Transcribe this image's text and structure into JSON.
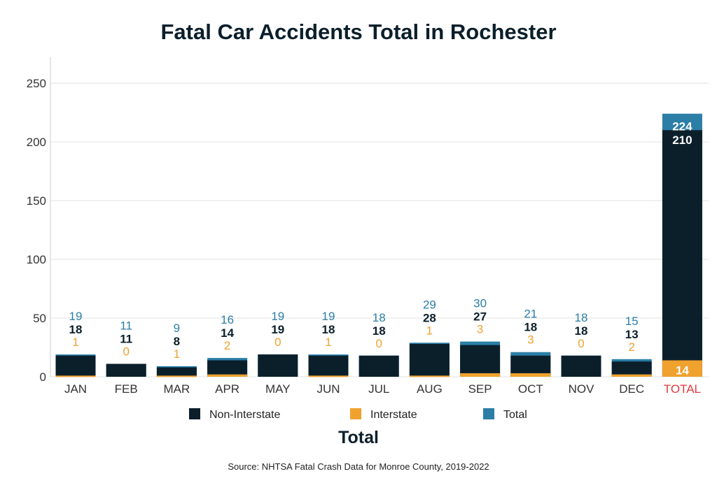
{
  "chart_data": {
    "type": "bar",
    "stacked": true,
    "title": "Fatal Car Accidents Total in Rochester",
    "subtitle": "Total",
    "source": "Source: NHTSA Fatal Crash Data for Monroe County, 2019-2022",
    "categories": [
      "JAN",
      "FEB",
      "MAR",
      "APR",
      "MAY",
      "JUN",
      "JUL",
      "AUG",
      "SEP",
      "OCT",
      "NOV",
      "DEC",
      "TOTAL"
    ],
    "series": [
      {
        "name": "Non-Interstate",
        "color": "#0b1f2b",
        "values": [
          18,
          11,
          8,
          14,
          19,
          18,
          18,
          28,
          27,
          18,
          18,
          13,
          210
        ]
      },
      {
        "name": "Interstate",
        "color": "#f0a22e",
        "values": [
          1,
          0,
          1,
          2,
          0,
          1,
          0,
          1,
          3,
          3,
          0,
          2,
          14
        ]
      },
      {
        "name": "Total",
        "color": "#2b7ea6",
        "values": [
          19,
          11,
          9,
          16,
          19,
          19,
          18,
          29,
          30,
          21,
          18,
          15,
          224
        ]
      }
    ],
    "ylim": [
      0,
      270
    ],
    "yticks": [
      0,
      50,
      100,
      150,
      200,
      250
    ],
    "grid": true,
    "legend": "bottom",
    "highlight_category": "TOTAL",
    "highlight_color": "#e03a3e"
  }
}
